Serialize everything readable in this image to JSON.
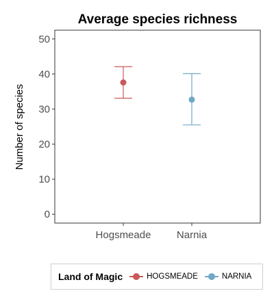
{
  "chart_data": {
    "type": "errorbar",
    "title": "Average species richness",
    "xlabel": "",
    "ylabel": "Number of species",
    "ylim": [
      -2.5,
      52.5
    ],
    "yticks": [
      0,
      10,
      20,
      30,
      40,
      50
    ],
    "categories": [
      "Hogsmeade",
      "Narnia"
    ],
    "points": [
      {
        "category": "Hogsmeade",
        "mean": 37.6,
        "lower": 33.1,
        "upper": 42.1,
        "color": "#C85A5A"
      },
      {
        "category": "Narnia",
        "mean": 32.7,
        "lower": 25.5,
        "upper": 40.1,
        "color": "#6FA8C8"
      }
    ],
    "grid": false,
    "legend": {
      "title": "Land of Magic",
      "position": "bottom",
      "items": [
        {
          "label": "HOGSMEADE",
          "color": "#C85A5A"
        },
        {
          "label": "NARNIA",
          "color": "#6FA8C8"
        }
      ]
    }
  }
}
